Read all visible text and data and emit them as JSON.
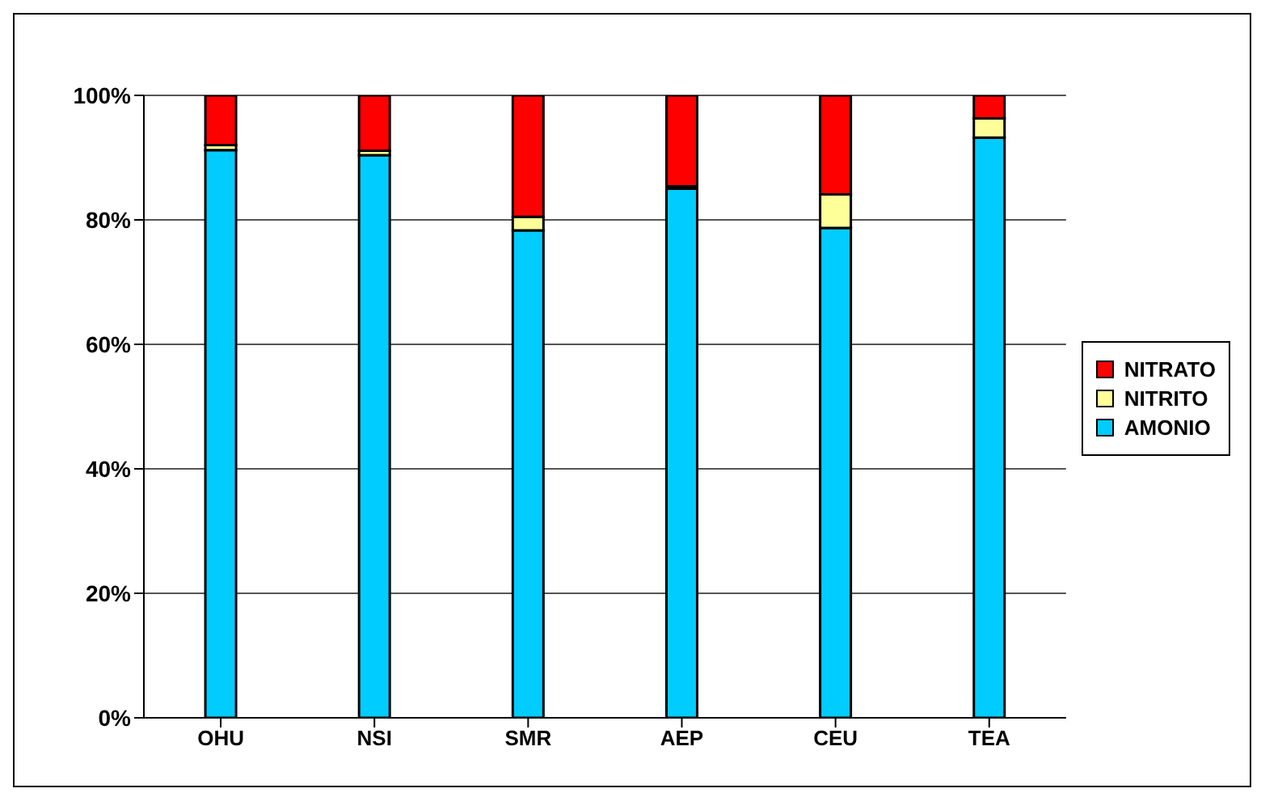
{
  "chart_data": {
    "type": "bar",
    "stacked": true,
    "categories": [
      "OHU",
      "NSI",
      "SMR",
      "AEP",
      "CEU",
      "TEA"
    ],
    "series": [
      {
        "name": "AMONIO",
        "color": "#00ccff",
        "values": [
          91.2,
          90.4,
          78.3,
          85.0,
          78.7,
          93.2
        ]
      },
      {
        "name": "NITRITO",
        "color": "#ffff99",
        "values": [
          0.8,
          0.7,
          2.2,
          0.4,
          5.4,
          3.1
        ]
      },
      {
        "name": "NITRATO",
        "color": "#ff0000",
        "values": [
          8.0,
          8.9,
          19.5,
          14.6,
          15.9,
          3.7
        ]
      }
    ],
    "ylim": [
      0,
      100
    ],
    "yticks": [
      {
        "value": 0,
        "label": "0%"
      },
      {
        "value": 20,
        "label": "20%"
      },
      {
        "value": 40,
        "label": "40%"
      },
      {
        "value": 60,
        "label": "60%"
      },
      {
        "value": 80,
        "label": "80%"
      },
      {
        "value": 100,
        "label": "100%"
      }
    ],
    "grid": "y",
    "legend": "right"
  }
}
